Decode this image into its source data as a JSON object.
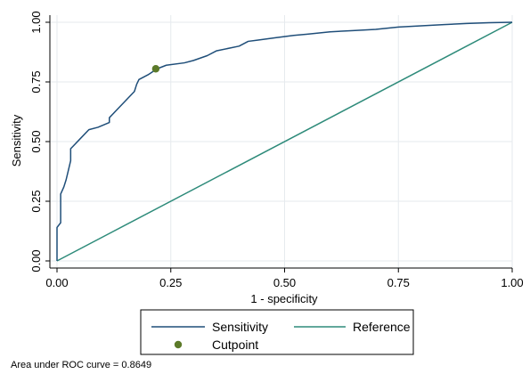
{
  "chart_data": {
    "type": "line",
    "title": "",
    "xlabel": "1 - specificity",
    "ylabel": "Sensitivity",
    "xlim": [
      0,
      1
    ],
    "ylim": [
      0,
      1
    ],
    "x_ticks": [
      "0.00",
      "0.25",
      "0.50",
      "0.75",
      "1.00"
    ],
    "y_ticks": [
      "0.00",
      "0.25",
      "0.50",
      "0.75",
      "1.00"
    ],
    "grid": true,
    "legend_position": "bottom",
    "series": [
      {
        "name": "Sensitivity",
        "color": "#1f4e79",
        "x": [
          0,
          0,
          0.008,
          0.008,
          0.015,
          0.02,
          0.025,
          0.03,
          0.03,
          0.035,
          0.05,
          0.07,
          0.09,
          0.115,
          0.115,
          0.13,
          0.145,
          0.155,
          0.17,
          0.175,
          0.18,
          0.2,
          0.22,
          0.24,
          0.28,
          0.3,
          0.33,
          0.35,
          0.4,
          0.42,
          0.44,
          0.48,
          0.52,
          0.55,
          0.6,
          0.65,
          0.7,
          0.75,
          0.8,
          0.85,
          0.9,
          0.95,
          1.0
        ],
        "y": [
          0,
          0.14,
          0.16,
          0.28,
          0.31,
          0.34,
          0.38,
          0.42,
          0.47,
          0.48,
          0.51,
          0.55,
          0.56,
          0.58,
          0.6,
          0.63,
          0.66,
          0.68,
          0.71,
          0.74,
          0.76,
          0.78,
          0.805,
          0.82,
          0.83,
          0.84,
          0.86,
          0.88,
          0.9,
          0.92,
          0.925,
          0.935,
          0.945,
          0.95,
          0.96,
          0.965,
          0.97,
          0.98,
          0.985,
          0.99,
          0.995,
          0.998,
          1.0
        ]
      },
      {
        "name": "Reference",
        "color": "#2e8b7a",
        "x": [
          0,
          1
        ],
        "y": [
          0,
          1
        ]
      }
    ],
    "points": [
      {
        "name": "Cutpoint",
        "color": "#5c7a29",
        "x": 0.217,
        "y": 0.805
      }
    ]
  },
  "note": "Area under ROC curve = 0.8649"
}
